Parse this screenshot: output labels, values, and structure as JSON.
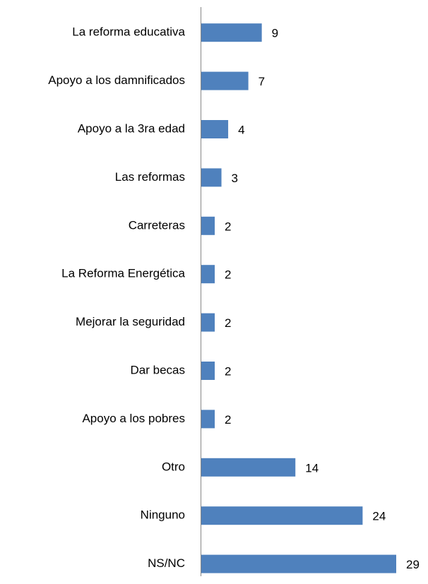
{
  "chart_data": {
    "type": "hbar",
    "categories": [
      "La reforma educativa",
      "Apoyo a los damnificados",
      "Apoyo a la 3ra edad",
      "Las reformas",
      "Carreteras",
      "La Reforma Energética",
      "Mejorar la seguridad",
      "Dar becas",
      "Apoyo a los pobres",
      "Otro",
      "Ninguno",
      "NS/NC"
    ],
    "values": [
      9,
      7,
      4,
      3,
      2,
      2,
      2,
      2,
      2,
      14,
      24,
      29
    ],
    "color": "#4f81bd"
  }
}
